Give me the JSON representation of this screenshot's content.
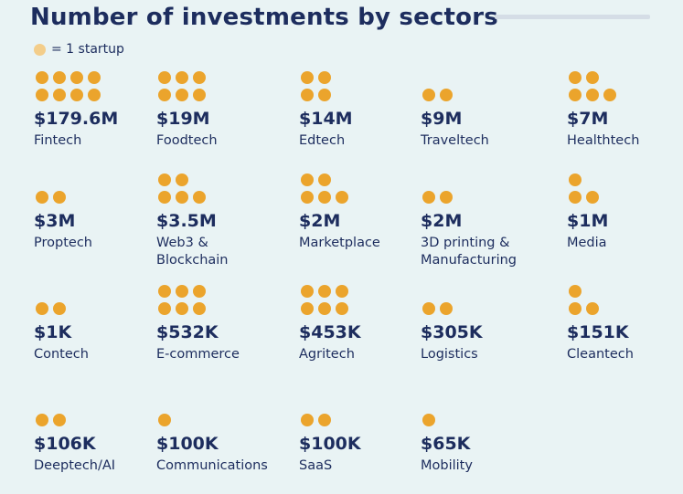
{
  "chart_data": {
    "type": "table",
    "title": "Number of investments by sectors",
    "legend": {
      "label": "= 1 startup"
    },
    "colors": {
      "dot": "#eba42c",
      "legend_dot": "#f3cd8a",
      "text": "#1d2d5e",
      "background": "#e9f3f4"
    },
    "sectors": [
      {
        "name": "Fintech",
        "amount": "$179.6M",
        "startups": 8
      },
      {
        "name": "Foodtech",
        "amount": "$19M",
        "startups": 6
      },
      {
        "name": "Edtech",
        "amount": "$14M",
        "startups": 4
      },
      {
        "name": "Traveltech",
        "amount": "$9M",
        "startups": 2
      },
      {
        "name": "Healthtech",
        "amount": "$7M",
        "startups": 5
      },
      {
        "name": "Proptech",
        "amount": "$3M",
        "startups": 2
      },
      {
        "name": "Web3 &\nBlockchain",
        "amount": "$3.5M",
        "startups": 5
      },
      {
        "name": "Marketplace",
        "amount": "$2M",
        "startups": 5
      },
      {
        "name": "3D printing &\nManufacturing",
        "amount": "$2M",
        "startups": 2
      },
      {
        "name": "Media",
        "amount": "$1M",
        "startups": 3
      },
      {
        "name": "Contech",
        "amount": "$1K",
        "startups": 2
      },
      {
        "name": "E-commerce",
        "amount": "$532K",
        "startups": 6
      },
      {
        "name": "Agritech",
        "amount": "$453K",
        "startups": 6
      },
      {
        "name": "Logistics",
        "amount": "$305K",
        "startups": 2
      },
      {
        "name": "Cleantech",
        "amount": "$151K",
        "startups": 3
      },
      {
        "name": "Deeptech/AI",
        "amount": "$106K",
        "startups": 2
      },
      {
        "name": "Communications",
        "amount": "$100K",
        "startups": 1
      },
      {
        "name": "SaaS",
        "amount": "$100K",
        "startups": 2
      },
      {
        "name": "Mobility",
        "amount": "$65K",
        "startups": 1
      }
    ]
  }
}
